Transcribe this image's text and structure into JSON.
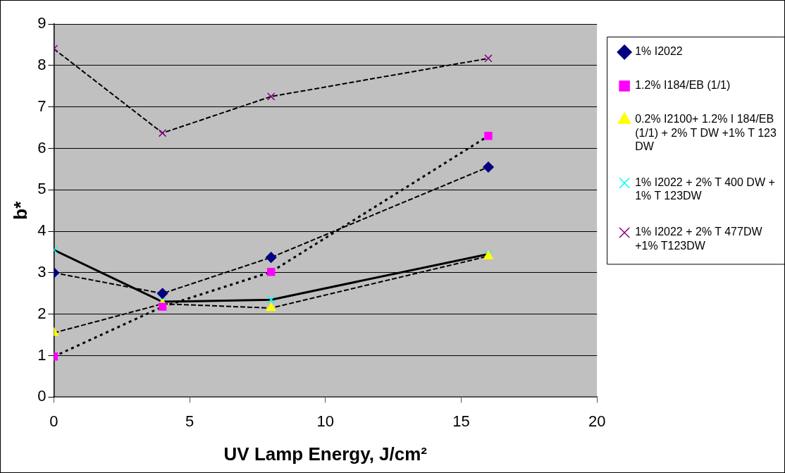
{
  "chart_data": {
    "type": "line",
    "xlabel": "UV Lamp Energy, J/cm²",
    "ylabel": "b*",
    "x": [
      0,
      4,
      8,
      16
    ],
    "xlim": [
      0,
      20
    ],
    "xticks": [
      0,
      5,
      10,
      15,
      20
    ],
    "ylim": [
      0,
      9
    ],
    "yticks": [
      0,
      1,
      2,
      3,
      4,
      5,
      6,
      7,
      8,
      9
    ],
    "grid": "y",
    "legend": "right",
    "series": [
      {
        "name": "1% I2022",
        "color": "#000080",
        "marker": "diamond",
        "line_style": "dashed",
        "values": [
          3.0,
          2.5,
          3.37,
          5.55
        ]
      },
      {
        "name": "1.2% I184/EB (1/1)",
        "color": "#ff00ff",
        "marker": "square",
        "line_style": "dotted",
        "values": [
          0.98,
          2.18,
          3.02,
          6.3
        ]
      },
      {
        "name": "0.2% I2100+ 1.2% I 184/EB (1/1) + 2% T DW +1% T 123 DW",
        "color": "#ffff00",
        "marker": "triangle",
        "line_style": "dashed",
        "values": [
          1.55,
          2.25,
          2.15,
          3.4
        ]
      },
      {
        "name": "1% I2022 + 2% T 400 DW + 1% T 123DW",
        "color": "#00ffff",
        "marker": "cross",
        "line_style": "solid",
        "values": [
          3.55,
          2.3,
          2.35,
          3.45
        ]
      },
      {
        "name": "1% I2022 + 2% T 477DW +1% T123DW",
        "color": "#800080",
        "marker": "cross",
        "line_style": "dashed",
        "values": [
          8.4,
          6.37,
          7.25,
          8.17
        ]
      }
    ]
  }
}
